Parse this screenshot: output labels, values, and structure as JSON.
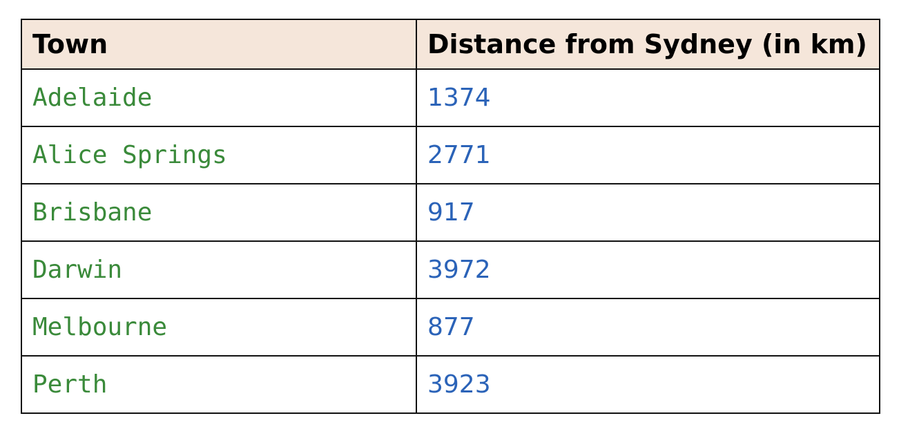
{
  "table": {
    "headers": [
      "Town",
      "Distance from Sydney (in km)"
    ],
    "rows": [
      {
        "town": "Adelaide",
        "distance": "1374"
      },
      {
        "town": "Alice Springs",
        "distance": "2771"
      },
      {
        "town": "Brisbane",
        "distance": "917"
      },
      {
        "town": "Darwin",
        "distance": "3972"
      },
      {
        "town": "Melbourne",
        "distance": "877"
      },
      {
        "town": "Perth",
        "distance": "3923"
      }
    ]
  },
  "colors": {
    "header_background": "#f5e6da",
    "town_text": "#3a8a3a",
    "distance_text": "#2b63b8",
    "border": "#111111"
  }
}
